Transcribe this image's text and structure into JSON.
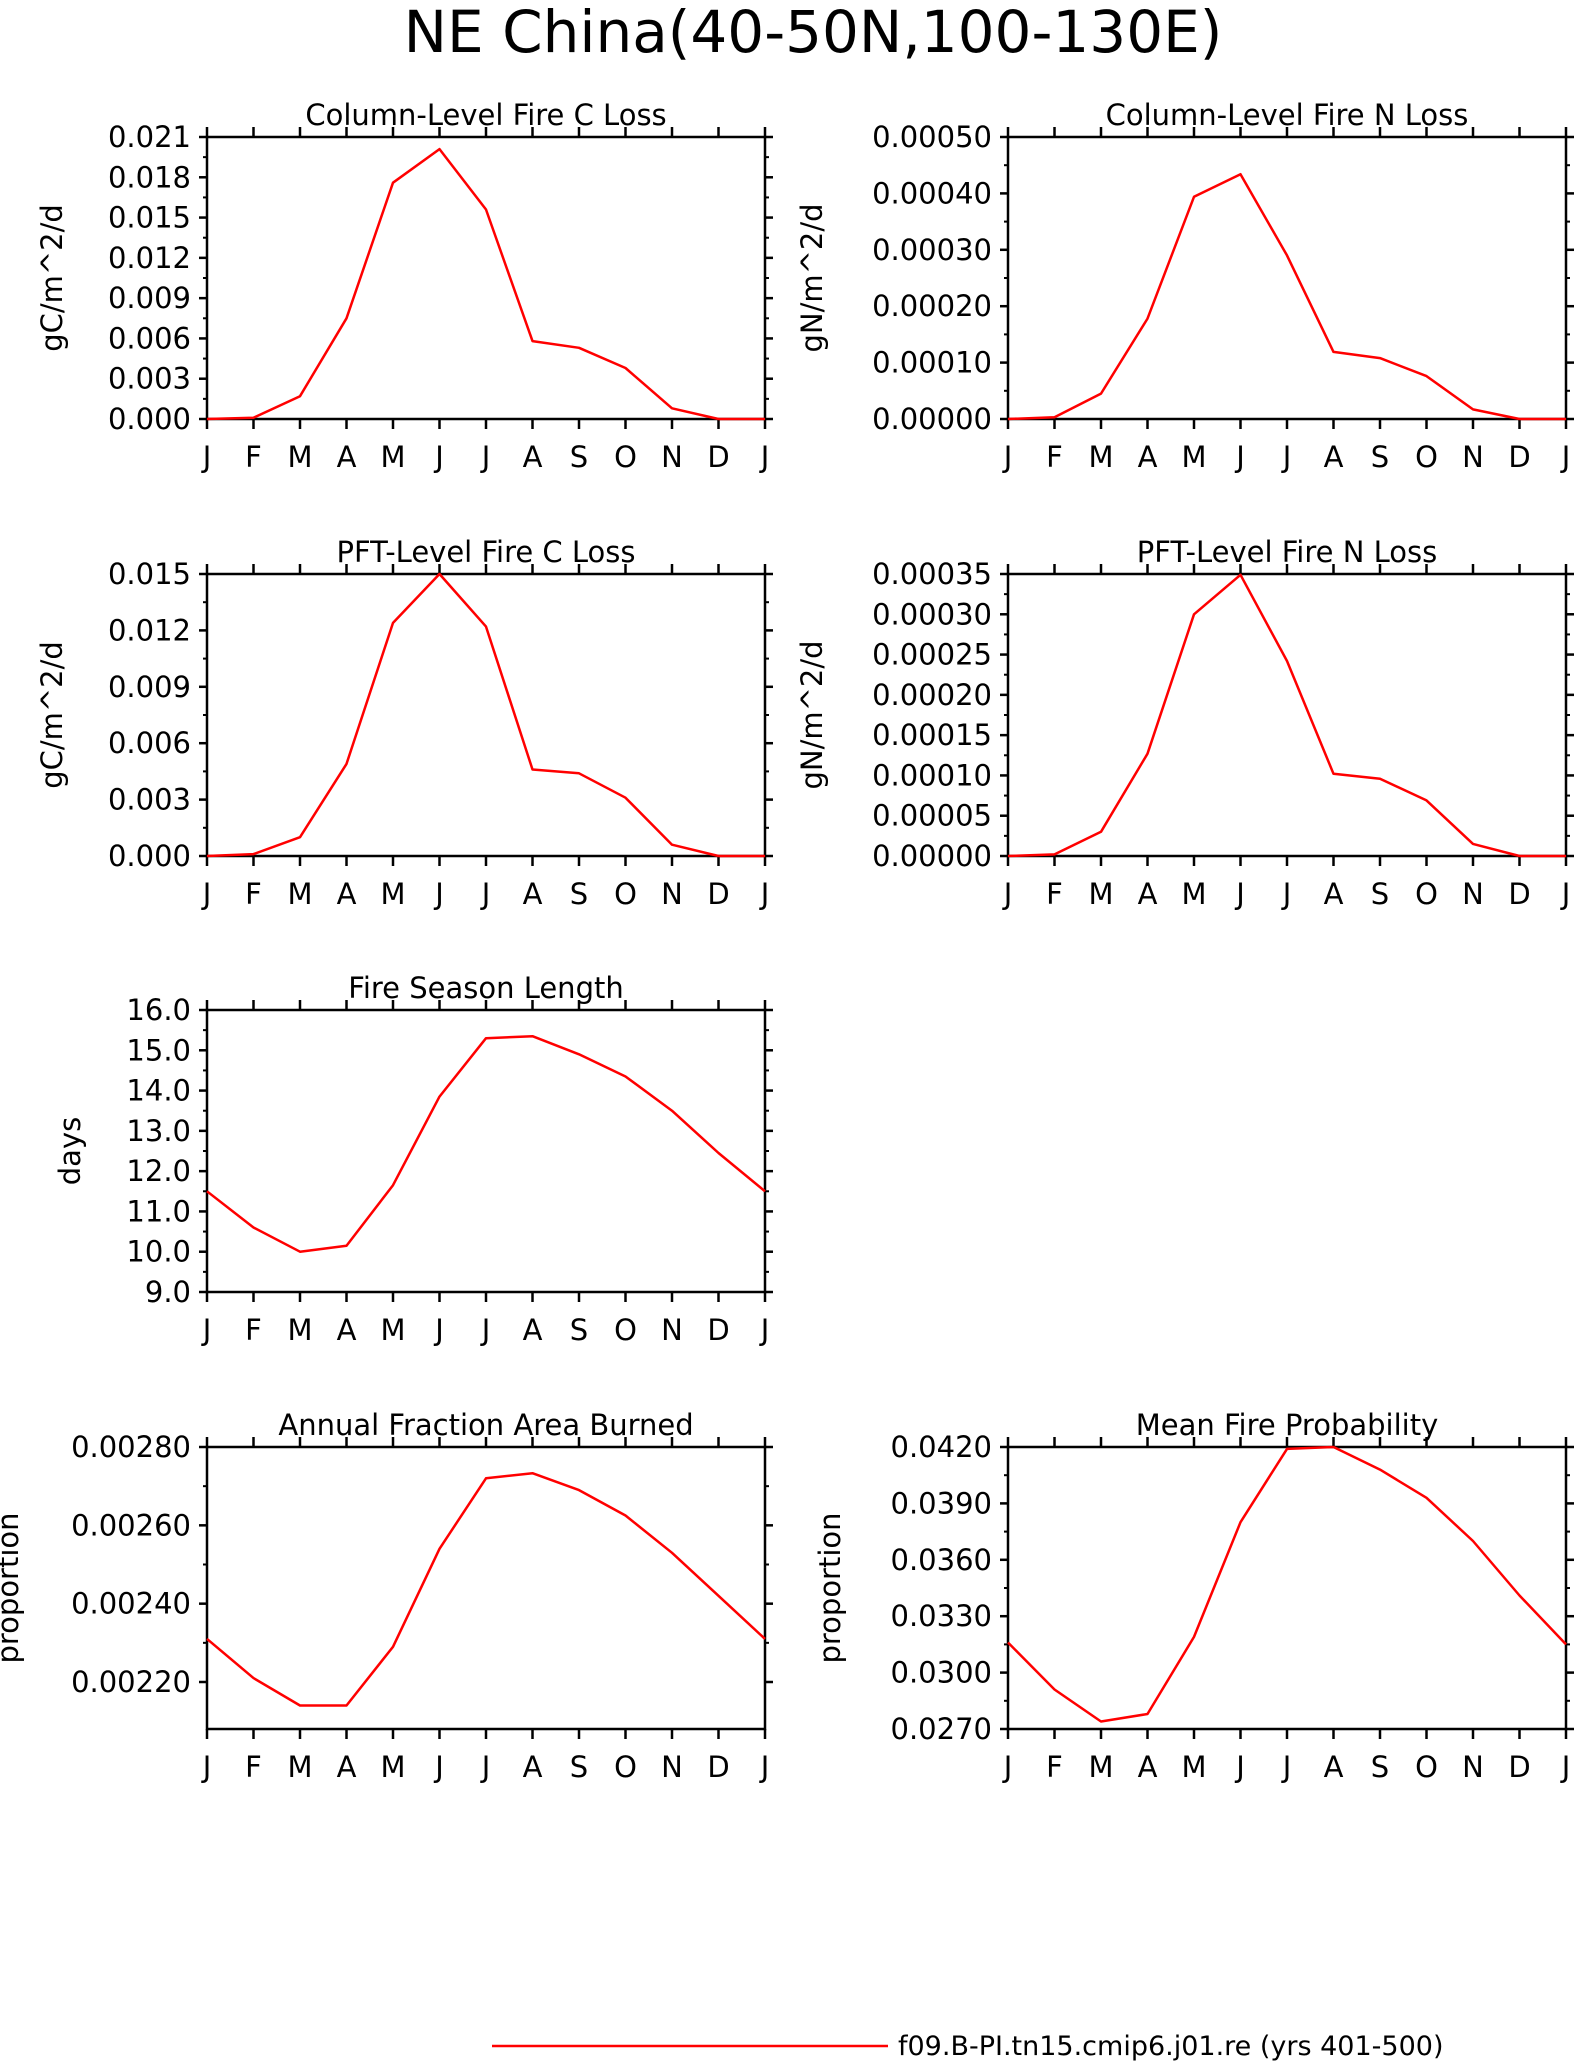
{
  "figure": {
    "title": "NE China(40-50N,100-130E)",
    "legend": {
      "label": "f09.B-PI.tn15.cmip6.j01.re (yrs 401-500)",
      "color": "#ff0000"
    }
  },
  "colors": {
    "line": "#ff0000",
    "axes": "#000000",
    "background": "#ffffff"
  },
  "chart_data": [
    {
      "type": "line",
      "title": "Column-Level Fire C Loss",
      "ylabel": "gC/m^2/d",
      "xlabel": "",
      "categories": [
        "J",
        "F",
        "M",
        "A",
        "M",
        "J",
        "J",
        "A",
        "S",
        "O",
        "N",
        "D",
        "J"
      ],
      "ylim": [
        0,
        0.021
      ],
      "yticks": [
        "0.000",
        "0.003",
        "0.006",
        "0.009",
        "0.012",
        "0.015",
        "0.018",
        "0.021"
      ],
      "series": [
        {
          "values": [
            0.0,
            0.0001,
            0.0017,
            0.0075,
            0.0176,
            0.0201,
            0.0156,
            0.0058,
            0.0053,
            0.0038,
            0.0008,
            0.0,
            0.0
          ]
        }
      ]
    },
    {
      "type": "line",
      "title": "Column-Level Fire N Loss",
      "ylabel": "gN/m^2/d",
      "xlabel": "",
      "categories": [
        "J",
        "F",
        "M",
        "A",
        "M",
        "J",
        "J",
        "A",
        "S",
        "O",
        "N",
        "D",
        "J"
      ],
      "ylim": [
        0,
        0.0005
      ],
      "yticks": [
        "0.00000",
        "0.00010",
        "0.00020",
        "0.00030",
        "0.00040",
        "0.00050"
      ],
      "series": [
        {
          "values": [
            0.0,
            3e-06,
            4.5e-05,
            0.000178,
            0.000394,
            0.000434,
            0.00029,
            0.000119,
            0.000108,
            7.6e-05,
            1.7e-05,
            0.0,
            0.0
          ]
        }
      ]
    },
    {
      "type": "line",
      "title": "PFT-Level Fire C Loss",
      "ylabel": "gC/m^2/d",
      "xlabel": "",
      "categories": [
        "J",
        "F",
        "M",
        "A",
        "M",
        "J",
        "J",
        "A",
        "S",
        "O",
        "N",
        "D",
        "J"
      ],
      "ylim": [
        0,
        0.015
      ],
      "yticks": [
        "0.000",
        "0.003",
        "0.006",
        "0.009",
        "0.012",
        "0.015"
      ],
      "series": [
        {
          "values": [
            0.0,
            0.0001,
            0.001,
            0.0049,
            0.0124,
            0.015,
            0.0122,
            0.0046,
            0.0044,
            0.0031,
            0.0006,
            0.0,
            0.0
          ]
        }
      ]
    },
    {
      "type": "line",
      "title": "PFT-Level Fire N Loss",
      "ylabel": "gN/m^2/d",
      "xlabel": "",
      "categories": [
        "J",
        "F",
        "M",
        "A",
        "M",
        "J",
        "J",
        "A",
        "S",
        "O",
        "N",
        "D",
        "J"
      ],
      "ylim": [
        0,
        0.00035
      ],
      "yticks": [
        "0.00000",
        "0.00005",
        "0.00010",
        "0.00015",
        "0.00020",
        "0.00025",
        "0.00030",
        "0.00035"
      ],
      "series": [
        {
          "values": [
            0.0,
            2e-06,
            3e-05,
            0.000127,
            0.0003,
            0.000349,
            0.000242,
            0.000102,
            9.6e-05,
            6.9e-05,
            1.5e-05,
            0.0,
            0.0
          ]
        }
      ]
    },
    {
      "type": "line",
      "title": "Fire Season Length",
      "ylabel": "days",
      "xlabel": "",
      "categories": [
        "J",
        "F",
        "M",
        "A",
        "M",
        "J",
        "J",
        "A",
        "S",
        "O",
        "N",
        "D",
        "J"
      ],
      "ylim": [
        9.0,
        16.0
      ],
      "yticks": [
        "9.0",
        "10.0",
        "11.0",
        "12.0",
        "13.0",
        "14.0",
        "15.0",
        "16.0"
      ],
      "series": [
        {
          "values": [
            11.5,
            10.6,
            10.0,
            10.15,
            11.65,
            13.85,
            15.3,
            15.35,
            14.9,
            14.35,
            13.5,
            12.45,
            11.5
          ]
        }
      ]
    },
    {
      "type": "line",
      "title": "Annual Fraction Area Burned",
      "ylabel": "proportion",
      "xlabel": "",
      "categories": [
        "J",
        "F",
        "M",
        "A",
        "M",
        "J",
        "J",
        "A",
        "S",
        "O",
        "N",
        "D",
        "J"
      ],
      "ylim": [
        0.00208,
        0.0028
      ],
      "yticks": [
        "0.00220",
        "0.00240",
        "0.00260",
        "0.00280"
      ],
      "series": [
        {
          "values": [
            0.00231,
            0.00221,
            0.00214,
            0.00214,
            0.00229,
            0.00254,
            0.00272,
            0.002733,
            0.00269,
            0.002625,
            0.00253,
            0.00242,
            0.00231
          ]
        }
      ]
    },
    {
      "type": "line",
      "title": "Mean Fire Probability",
      "ylabel": "proportion",
      "xlabel": "",
      "categories": [
        "J",
        "F",
        "M",
        "A",
        "M",
        "J",
        "J",
        "A",
        "S",
        "O",
        "N",
        "D",
        "J"
      ],
      "ylim": [
        0.027,
        0.042
      ],
      "yticks": [
        "0.0270",
        "0.0300",
        "0.0330",
        "0.0360",
        "0.0390",
        "0.0420"
      ],
      "series": [
        {
          "values": [
            0.0316,
            0.0291,
            0.0274,
            0.0278,
            0.0319,
            0.038,
            0.0419,
            0.042,
            0.0408,
            0.0393,
            0.037,
            0.0341,
            0.0315
          ]
        }
      ]
    }
  ]
}
